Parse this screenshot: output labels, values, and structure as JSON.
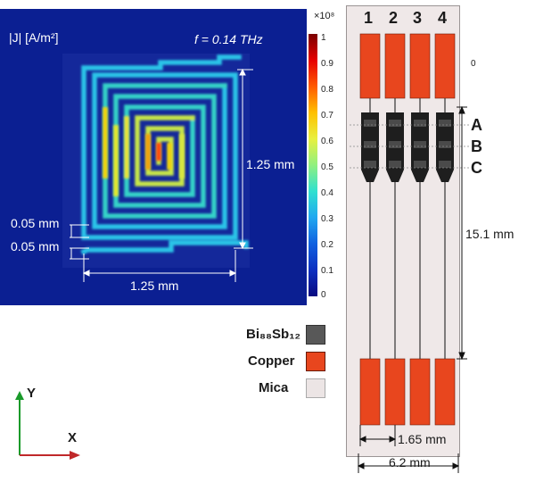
{
  "field_map": {
    "quantity_label": "|J| [A/m²]",
    "frequency_label": "f = 0.14 THz",
    "dim_height": "1.25 mm",
    "dim_width": "1.25 mm",
    "dim_line_width": "0.05 mm",
    "dim_gap": "0.05 mm",
    "colors": {
      "background": "#0b1f92",
      "trace_low": "#22c7e6"
    }
  },
  "colorbar": {
    "exponent": "×10⁸",
    "ticks": [
      "1",
      "0.9",
      "0.8",
      "0.7",
      "0.6",
      "0.5",
      "0.4",
      "0.3",
      "0.2",
      "0.1",
      "0"
    ]
  },
  "device": {
    "channels": [
      "1",
      "2",
      "3",
      "4"
    ],
    "sections": [
      "A",
      "B",
      "C"
    ],
    "side_mark": "0",
    "dim_length": "15.1 mm",
    "dim_pitch": "1.65 mm",
    "dim_width": "6.2 mm",
    "colors": {
      "substrate": "#efe8e8",
      "pad": "#e8461e",
      "film": "#222222"
    }
  },
  "legend": {
    "items": [
      {
        "label": "Bi₈₈Sb₁₂",
        "color": "#585858"
      },
      {
        "label": "Copper",
        "color": "#e8461e"
      },
      {
        "label": "Mica",
        "color": "#ece5e5"
      }
    ]
  },
  "axes": {
    "y_label": "Y",
    "x_label": "X"
  }
}
